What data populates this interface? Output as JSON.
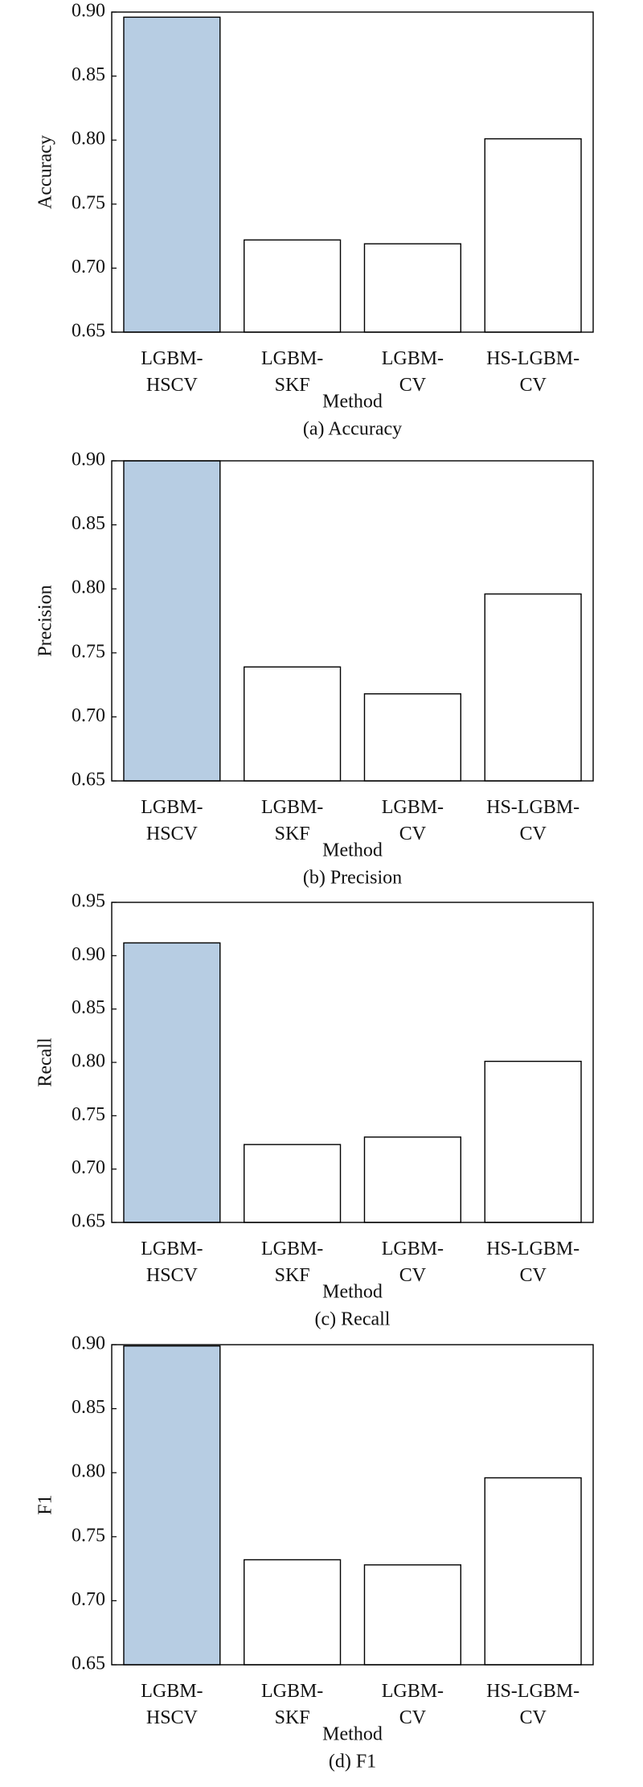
{
  "chart_data": [
    {
      "type": "bar",
      "ylabel": "Accuracy",
      "xlabel": "Method",
      "caption": "(a) Accuracy",
      "categories": [
        "LGBM-HSCV",
        "LGBM-SKF",
        "LGBM-CV",
        "HS-LGBM-CV"
      ],
      "values": [
        0.896,
        0.722,
        0.719,
        0.801
      ],
      "colors": [
        "#b7cde3",
        "#ffffff",
        "#ffffff",
        "#ffffff"
      ],
      "ylim": [
        0.65,
        0.9
      ],
      "yticks": [
        {
          "value": 0.65,
          "label": "0.65"
        },
        {
          "value": 0.7,
          "label": "0.70"
        },
        {
          "value": 0.75,
          "label": "0.75"
        },
        {
          "value": 0.8,
          "label": "0.80"
        },
        {
          "value": 0.85,
          "label": "0.85"
        },
        {
          "value": 0.9,
          "label": "0.90"
        }
      ]
    },
    {
      "type": "bar",
      "ylabel": "Precision",
      "xlabel": "Method",
      "caption": "(b) Precision",
      "categories": [
        "LGBM-HSCV",
        "LGBM-SKF",
        "LGBM-CV",
        "HS-LGBM-CV"
      ],
      "values": [
        0.9,
        0.739,
        0.718,
        0.796
      ],
      "colors": [
        "#b7cde3",
        "#ffffff",
        "#ffffff",
        "#ffffff"
      ],
      "ylim": [
        0.65,
        0.9
      ],
      "yticks": [
        {
          "value": 0.65,
          "label": "0.65"
        },
        {
          "value": 0.7,
          "label": "0.70"
        },
        {
          "value": 0.75,
          "label": "0.75"
        },
        {
          "value": 0.8,
          "label": "0.80"
        },
        {
          "value": 0.85,
          "label": "0.85"
        },
        {
          "value": 0.9,
          "label": "0.90"
        }
      ]
    },
    {
      "type": "bar",
      "ylabel": "Recall",
      "xlabel": "Method",
      "caption": "(c) Recall",
      "categories": [
        "LGBM-HSCV",
        "LGBM-SKF",
        "LGBM-CV",
        "HS-LGBM-CV"
      ],
      "values": [
        0.912,
        0.723,
        0.73,
        0.801
      ],
      "colors": [
        "#b7cde3",
        "#ffffff",
        "#ffffff",
        "#ffffff"
      ],
      "ylim": [
        0.65,
        0.95
      ],
      "yticks": [
        {
          "value": 0.65,
          "label": "0.65"
        },
        {
          "value": 0.7,
          "label": "0.70"
        },
        {
          "value": 0.75,
          "label": "0.75"
        },
        {
          "value": 0.8,
          "label": "0.80"
        },
        {
          "value": 0.85,
          "label": "0.85"
        },
        {
          "value": 0.9,
          "label": "0.90"
        },
        {
          "value": 0.95,
          "label": "0.95"
        }
      ]
    },
    {
      "type": "bar",
      "ylabel": "F1",
      "xlabel": "Method",
      "caption": "(d) F1",
      "categories": [
        "LGBM-HSCV",
        "LGBM-SKF",
        "LGBM-CV",
        "HS-LGBM-CV"
      ],
      "values": [
        0.899,
        0.732,
        0.728,
        0.796
      ],
      "colors": [
        "#b7cde3",
        "#ffffff",
        "#ffffff",
        "#ffffff"
      ],
      "ylim": [
        0.65,
        0.9
      ],
      "yticks": [
        {
          "value": 0.65,
          "label": "0.65"
        },
        {
          "value": 0.7,
          "label": "0.70"
        },
        {
          "value": 0.75,
          "label": "0.75"
        },
        {
          "value": 0.8,
          "label": "0.80"
        },
        {
          "value": 0.85,
          "label": "0.85"
        },
        {
          "value": 0.9,
          "label": "0.90"
        }
      ]
    }
  ]
}
